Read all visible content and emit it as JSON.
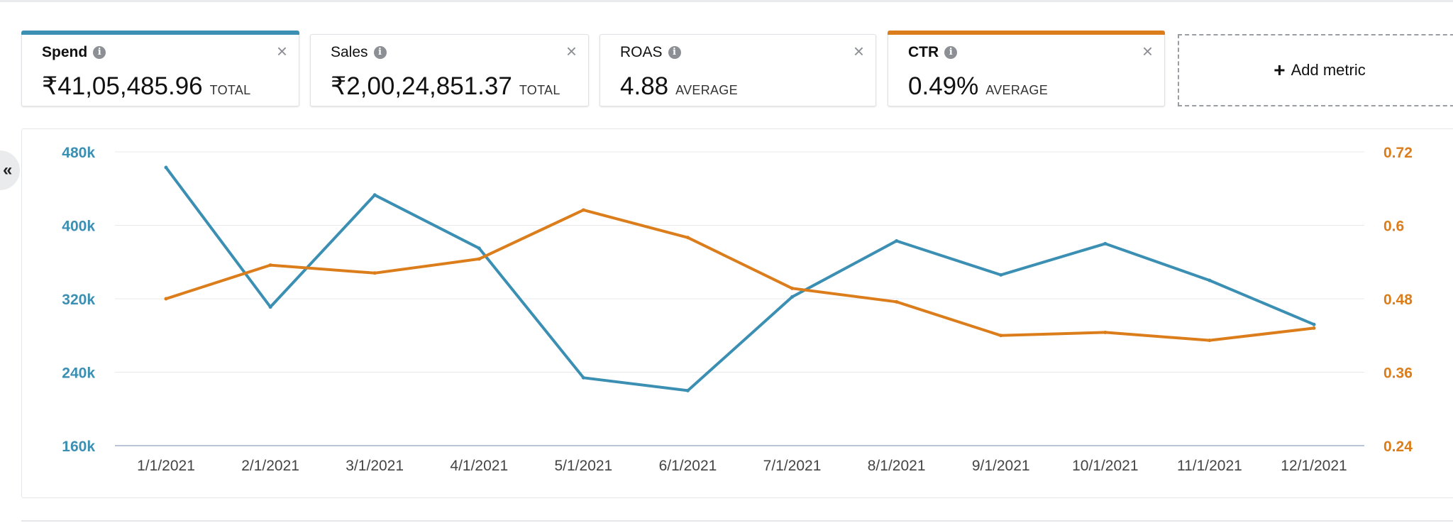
{
  "metrics": [
    {
      "name": "Spend",
      "value": "₹41,05,485.96",
      "aggregation": "TOTAL",
      "accent": "#3b8fb3",
      "selected": true
    },
    {
      "name": "Sales",
      "value": "₹2,00,24,851.37",
      "aggregation": "TOTAL",
      "accent": null,
      "selected": false
    },
    {
      "name": "ROAS",
      "value": "4.88",
      "aggregation": "AVERAGE",
      "accent": null,
      "selected": false
    },
    {
      "name": "CTR",
      "value": "0.49%",
      "aggregation": "AVERAGE",
      "accent": "#dc7d1b",
      "selected": true
    }
  ],
  "icons": {
    "info": "info-icon",
    "close": "close-icon",
    "collapse": "double-chevron-left-icon"
  },
  "add_metric_label": "Add metric",
  "collapse_glyph": "«",
  "close_glyph": "×",
  "info_glyph": "i",
  "chart_data": {
    "type": "line",
    "categories": [
      "1/1/2021",
      "2/1/2021",
      "3/1/2021",
      "4/1/2021",
      "5/1/2021",
      "6/1/2021",
      "7/1/2021",
      "8/1/2021",
      "9/1/2021",
      "10/1/2021",
      "11/1/2021",
      "12/1/2021"
    ],
    "series": [
      {
        "name": "Spend",
        "axis": "left",
        "color": "#3b8fb3",
        "values": [
          463000,
          311000,
          433000,
          375000,
          234000,
          220000,
          322000,
          383000,
          346000,
          380000,
          340000,
          292000
        ]
      },
      {
        "name": "CTR",
        "axis": "right",
        "color": "#dc7d1b",
        "values": [
          0.48,
          0.535,
          0.522,
          0.545,
          0.625,
          0.58,
          0.497,
          0.475,
          0.42,
          0.425,
          0.412,
          0.432
        ]
      }
    ],
    "left_axis": {
      "min": 160000,
      "max": 480000,
      "ticks": [
        160000,
        240000,
        320000,
        400000,
        480000
      ],
      "tick_labels": [
        "160k",
        "240k",
        "320k",
        "400k",
        "480k"
      ],
      "color": "#3b8fb3"
    },
    "right_axis": {
      "min": 0.24,
      "max": 0.72,
      "ticks": [
        0.24,
        0.36,
        0.48,
        0.6,
        0.72
      ],
      "tick_labels": [
        "0.24",
        "0.36",
        "0.48",
        "0.6",
        "0.72"
      ],
      "color": "#dc7d1b"
    },
    "grid": true,
    "title": "",
    "xlabel": "",
    "ylabel": ""
  }
}
